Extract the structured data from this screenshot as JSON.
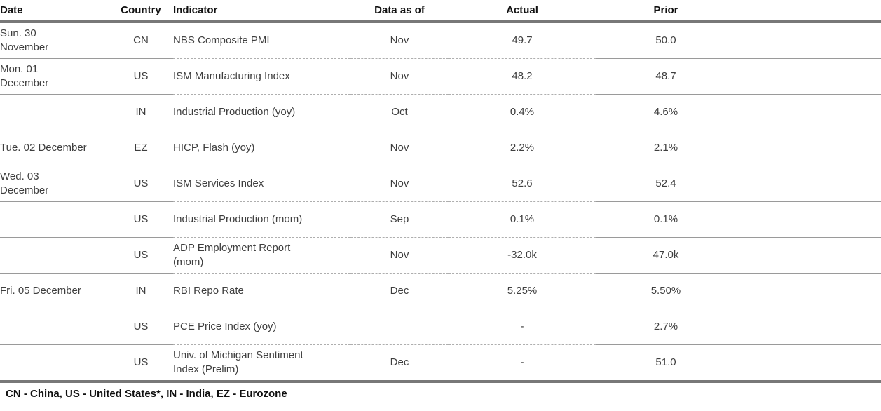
{
  "chart_data": {
    "type": "table",
    "columns": [
      "Date",
      "Country",
      "Indicator",
      "Data as of",
      "Actual",
      "Prior"
    ],
    "rows": [
      [
        "Sun. 30\nNovember",
        "CN",
        "NBS Composite PMI",
        "Nov",
        "49.7",
        "50.0"
      ],
      [
        "Mon. 01\nDecember",
        "US",
        "ISM Manufacturing Index",
        "Nov",
        "48.2",
        "48.7"
      ],
      [
        "",
        "IN",
        "Industrial Production (yoy)",
        "Oct",
        "0.4%",
        "4.6%"
      ],
      [
        "Tue. 02 December",
        "EZ",
        "HICP, Flash (yoy)",
        "Nov",
        "2.2%",
        "2.1%"
      ],
      [
        "Wed. 03\nDecember",
        "US",
        "ISM Services Index",
        "Nov",
        "52.6",
        "52.4"
      ],
      [
        "",
        "US",
        "Industrial Production (mom)",
        "Sep",
        "0.1%",
        "0.1%"
      ],
      [
        "",
        "US",
        "ADP Employment Report\n(mom)",
        "Nov",
        "-32.0k",
        "47.0k"
      ],
      [
        "Fri. 05 December",
        "IN",
        "RBI Repo Rate",
        "Dec",
        "5.25%",
        "5.50%"
      ],
      [
        "",
        "US",
        "PCE Price Index (yoy)",
        "",
        "-",
        "2.7%"
      ],
      [
        "",
        "US",
        "Univ. of Michigan Sentiment\nIndex (Prelim)",
        "Dec",
        "-",
        "51.0"
      ]
    ],
    "footnote": "CN - China, US - United States*, IN - India, EZ - Eurozone",
    "layout": {
      "grid": "horizontal rules only",
      "header_rule_color": "#787878",
      "row_rule_solid_color": "#9a9a9a",
      "row_rule_dashed_color": "#aeaeae",
      "header_text_color": "#121212",
      "body_text_color": "#3e3e3e",
      "background_color": "#ffffff"
    }
  }
}
